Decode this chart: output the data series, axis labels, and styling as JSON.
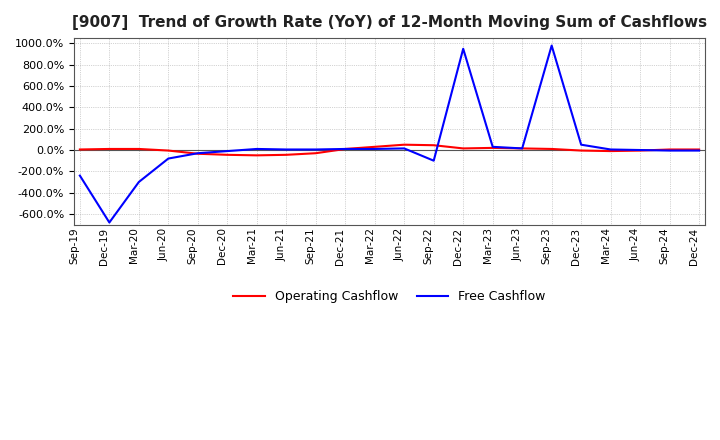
{
  "title": "[9007]  Trend of Growth Rate (YoY) of 12-Month Moving Sum of Cashflows",
  "title_fontsize": 11,
  "background_color": "#ffffff",
  "grid_color": "#aaaaaa",
  "ylim": [
    -700,
    1050
  ],
  "yticks": [
    -600,
    -400,
    -200,
    0,
    200,
    400,
    600,
    800,
    1000
  ],
  "x_labels": [
    "Sep-19",
    "Dec-19",
    "Mar-20",
    "Jun-20",
    "Sep-20",
    "Dec-20",
    "Mar-21",
    "Jun-21",
    "Sep-21",
    "Dec-21",
    "Mar-22",
    "Jun-22",
    "Sep-22",
    "Dec-22",
    "Mar-23",
    "Jun-23",
    "Sep-23",
    "Dec-23",
    "Mar-24",
    "Jun-24",
    "Sep-24",
    "Dec-24"
  ],
  "operating_cashflow": [
    5,
    10,
    10,
    -5,
    -35,
    -45,
    -50,
    -45,
    -30,
    10,
    30,
    50,
    45,
    15,
    20,
    15,
    10,
    -5,
    -10,
    -5,
    5,
    5
  ],
  "free_cashflow": [
    -240,
    -680,
    -300,
    -80,
    -30,
    -10,
    10,
    5,
    5,
    10,
    10,
    15,
    -100,
    950,
    30,
    15,
    980,
    50,
    5,
    0,
    -5,
    -5
  ],
  "op_color": "#ff0000",
  "fc_color": "#0000ff",
  "legend_op": "Operating Cashflow",
  "legend_fc": "Free Cashflow"
}
